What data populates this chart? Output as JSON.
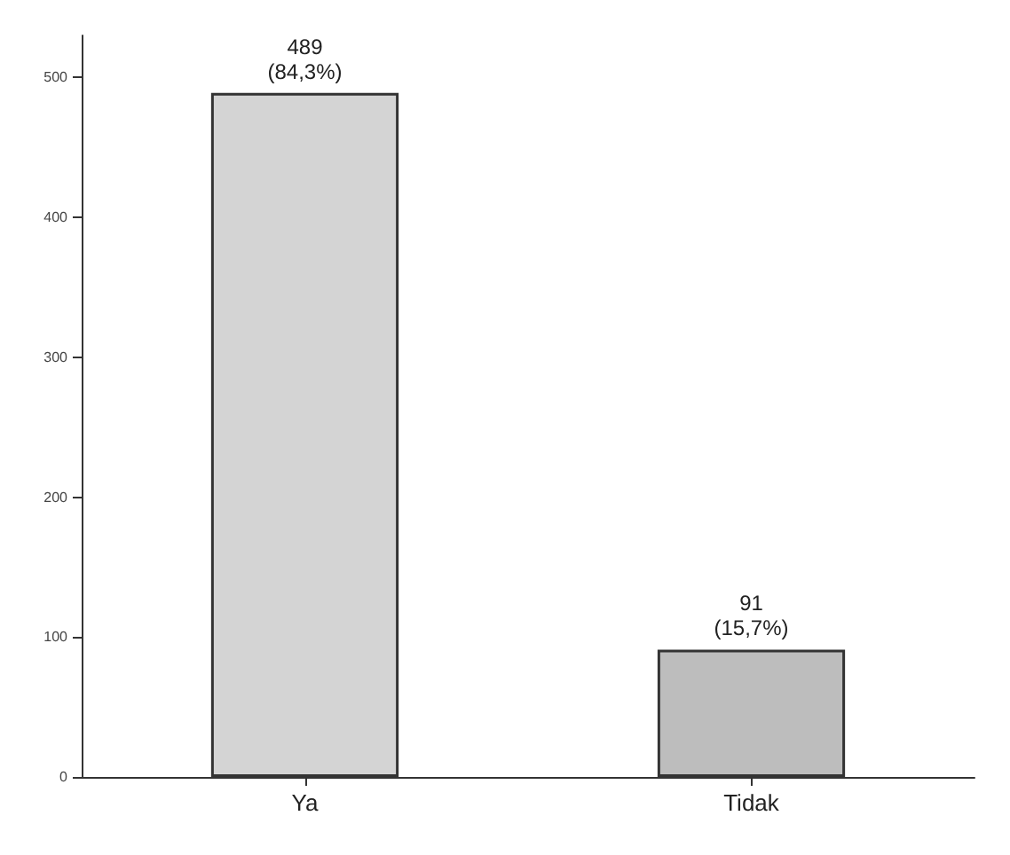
{
  "chart_data": {
    "type": "bar",
    "categories": [
      "Ya",
      "Tidak"
    ],
    "values": [
      489,
      91
    ],
    "colors": [
      "#d4d4d4",
      "#bdbdbd"
    ],
    "value_labels": [
      "489\n(84,3%)",
      "91\n(15,7%)"
    ],
    "ylim": [
      0,
      530
    ],
    "yticks": [
      0,
      100,
      200,
      300,
      400,
      500
    ]
  }
}
